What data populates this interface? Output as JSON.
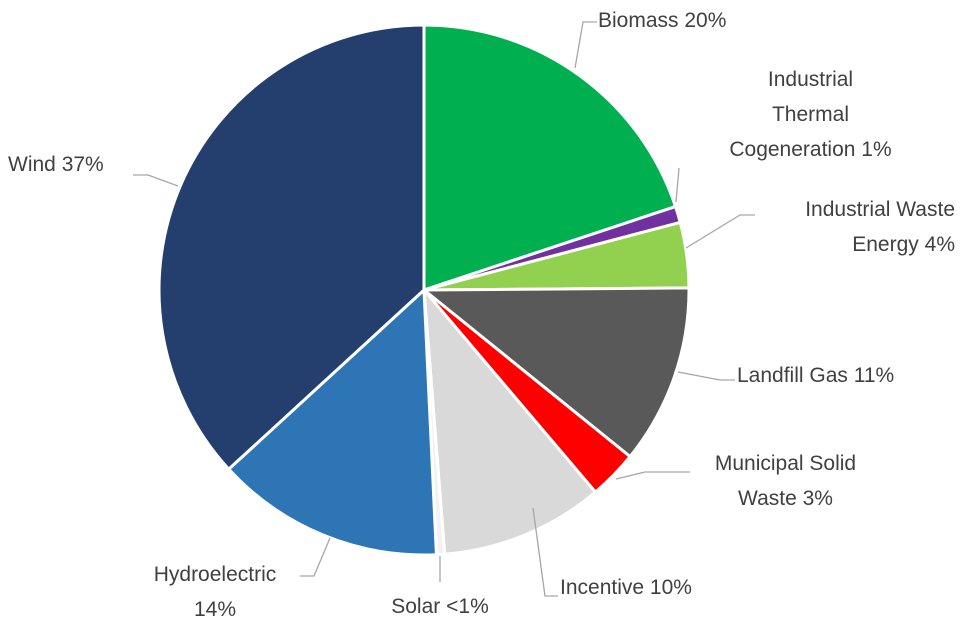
{
  "chart_data": {
    "type": "pie",
    "categories": [
      "Biomass",
      "Industrial Thermal Cogeneration",
      "Industrial Waste Energy",
      "Landfill Gas",
      "Municipal Solid Waste",
      "Incentive",
      "Solar",
      "Hydroelectric",
      "Wind"
    ],
    "values": [
      20,
      1,
      4,
      11,
      3,
      10,
      0.5,
      14,
      37
    ],
    "value_labels": [
      "20%",
      "1%",
      "4%",
      "11%",
      "3%",
      "10%",
      "<1%",
      "14%",
      "37%"
    ],
    "colors": [
      "#00b050",
      "#7030a0",
      "#92d050",
      "#595959",
      "#ff0000",
      "#d9d9d9",
      "#f2f2f2",
      "#2e75b6",
      "#243f6e"
    ]
  }
}
